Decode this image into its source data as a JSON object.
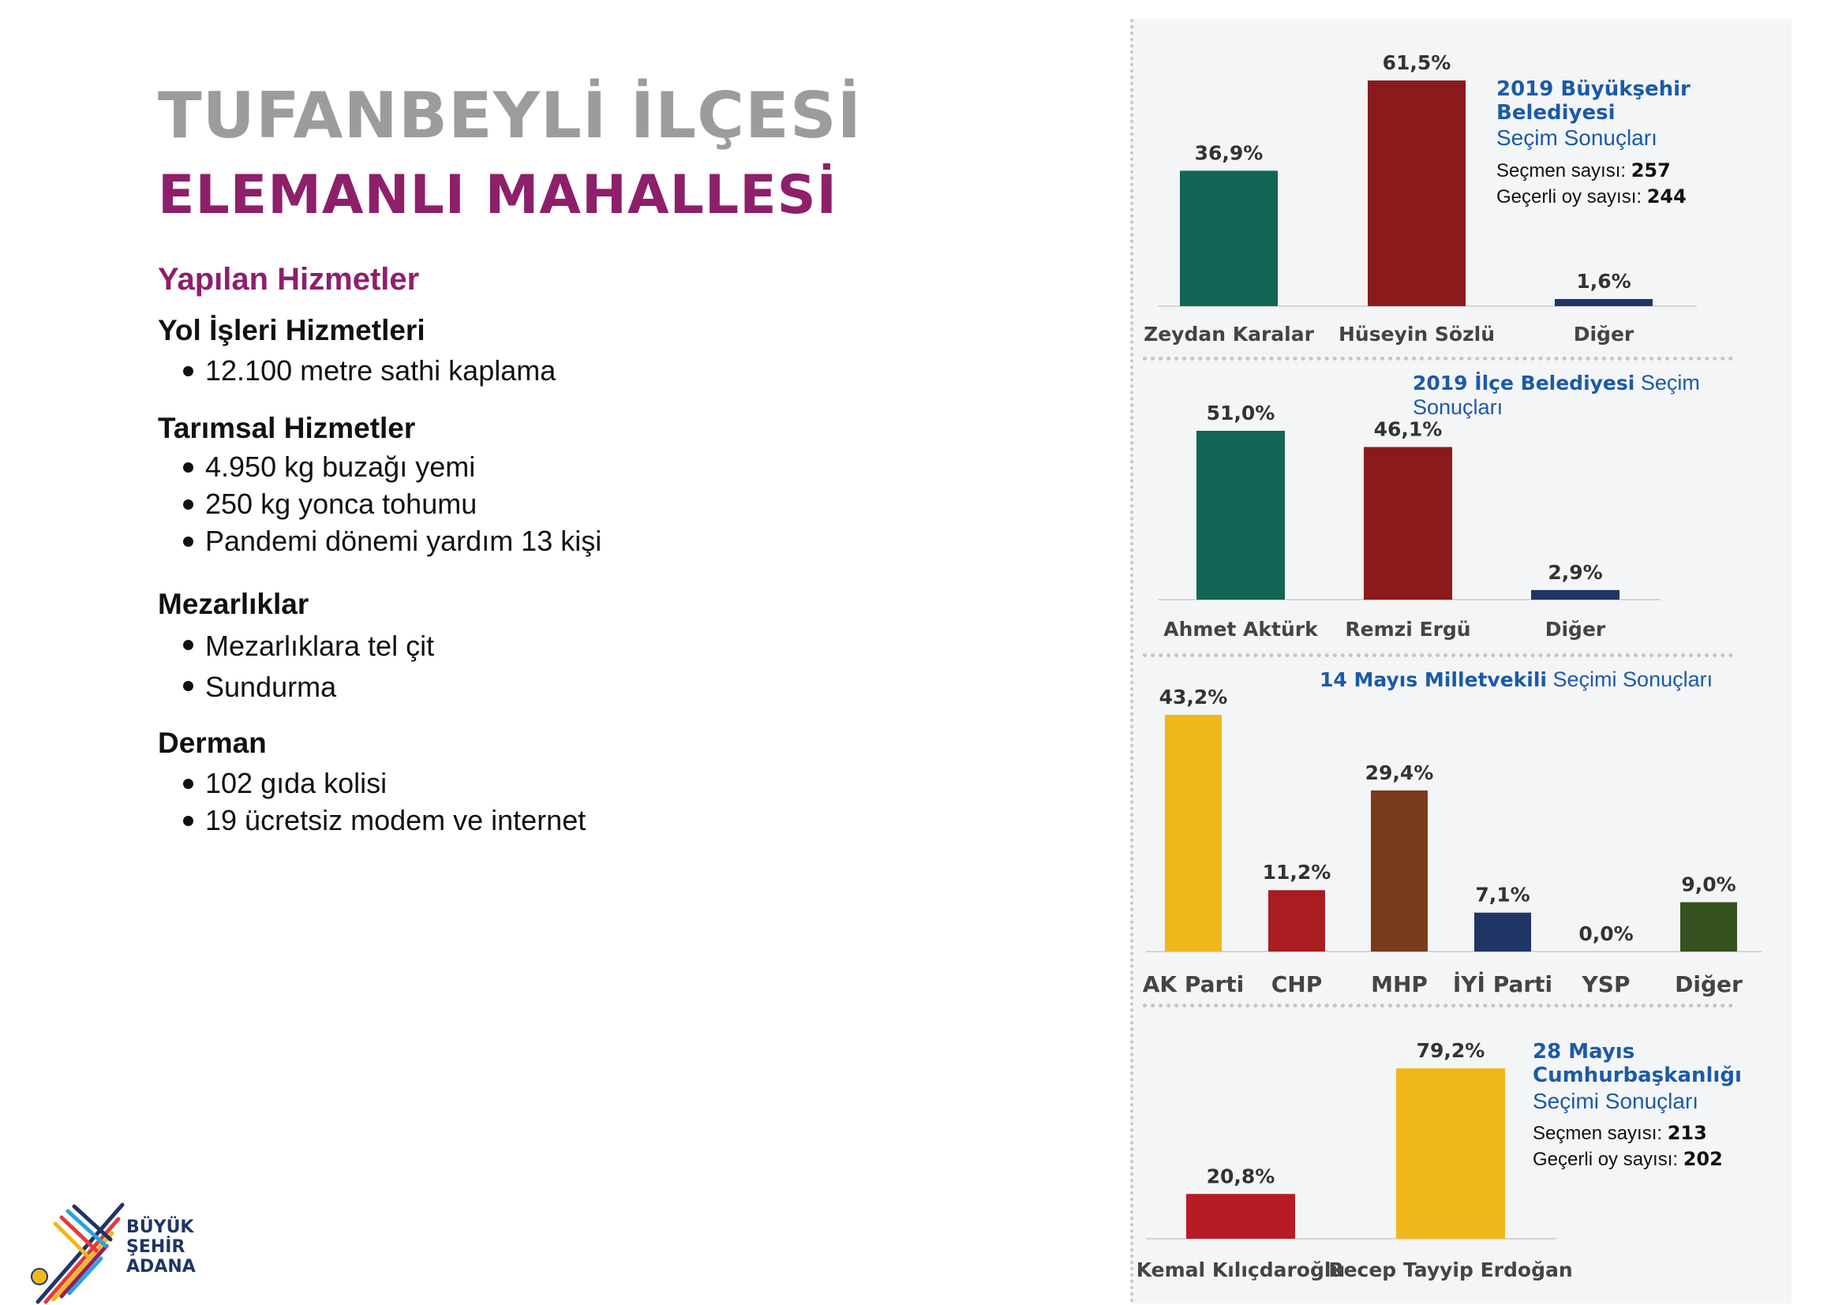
{
  "header": {
    "title_line1": "TUFANBEYLİ İLÇESİ",
    "title_line2": "ELEMANLI MAHALLESİ"
  },
  "services": {
    "heading": "Yapılan Hizmetler",
    "groups": [
      {
        "title": "Yol İşleri Hizmetleri",
        "items": [
          "12.100 metre sathi kaplama"
        ]
      },
      {
        "title": "Tarımsal Hizmetler",
        "items": [
          "4.950 kg buzağı yemi",
          "250 kg yonca tohumu",
          "Pandemi dönemi yardım 13 kişi"
        ]
      },
      {
        "title": "Mezarlıklar",
        "items": [
          "Mezarlıklara tel çit",
          "Sundurma"
        ]
      },
      {
        "title": "Derman",
        "items": [
          "102 gıda kolisi",
          "19 ücretsiz modem ve internet"
        ]
      }
    ]
  },
  "logo": {
    "line1": "BÜYÜK",
    "line2": "ŞEHİR",
    "line3": "ADANA"
  },
  "info_boxes": {
    "metro": {
      "title_bold": "2019 Büyükşehir Belediyesi",
      "title_rest": "Seçim Sonuçları",
      "voters_label": "Seçmen sayısı:",
      "voters_value": "257",
      "valid_label": "Geçerli oy sayısı:",
      "valid_value": "244"
    },
    "district": {
      "title_bold": "2019 İlçe Belediyesi",
      "title_rest": "Seçim Sonuçları"
    },
    "parliament": {
      "title_bold": "14 Mayıs Milletvekili",
      "title_rest": "Seçimi Sonuçları"
    },
    "president": {
      "title_bold_1": "28 Mayıs",
      "title_bold_2": "Cumhurbaşkanlığı",
      "title_rest": "Seçimi Sonuçları",
      "voters_label": "Seçmen sayısı:",
      "voters_value": "213",
      "valid_label": "Geçerli oy sayısı:",
      "valid_value": "202"
    }
  },
  "chart_data": [
    {
      "type": "bar",
      "categories": [
        "Zeydan Karalar",
        "Hüseyin Sözlü",
        "Diğer"
      ],
      "values": [
        36.9,
        61.5,
        1.6
      ],
      "value_labels": [
        "36,9%",
        "61,5%",
        "1,6%"
      ],
      "colors": [
        "#126656",
        "#8b1a1d",
        "#1f3566"
      ],
      "title": "2019 Büyükşehir Belediyesi Seçim Sonuçları",
      "ylim": [
        0,
        61.5
      ]
    },
    {
      "type": "bar",
      "categories": [
        "Ahmet Aktürk",
        "Remzi Ergü",
        "Diğer"
      ],
      "values": [
        51.0,
        46.1,
        2.9
      ],
      "value_labels": [
        "51,0%",
        "46,1%",
        "2,9%"
      ],
      "colors": [
        "#126656",
        "#8b1a1d",
        "#1f3566"
      ],
      "title": "2019 İlçe Belediyesi Seçim Sonuçları",
      "ylim": [
        0,
        51.0
      ]
    },
    {
      "type": "bar",
      "categories": [
        "AK Parti",
        "CHP",
        "MHP",
        "İYİ Parti",
        "YSP",
        "Diğer"
      ],
      "values": [
        43.2,
        11.2,
        29.4,
        7.1,
        0.0,
        9.0
      ],
      "value_labels": [
        "43,2%",
        "11,2%",
        "29,4%",
        "7,1%",
        "0,0%",
        "9,0%"
      ],
      "colors": [
        "#f1b81d",
        "#a81c22",
        "#7a3b1a",
        "#1f3566",
        "#8a3a9a",
        "#35521f"
      ],
      "title": "14 Mayıs Milletvekili Seçimi Sonuçları",
      "ylim": [
        0,
        43.2
      ]
    },
    {
      "type": "bar",
      "categories": [
        "Kemal Kılıçdaroğlu",
        "Recep Tayyip Erdoğan"
      ],
      "values": [
        20.8,
        79.2
      ],
      "value_labels": [
        "20,8%",
        "79,2%"
      ],
      "colors": [
        "#b71c24",
        "#f1b81d"
      ],
      "title": "28 Mayıs Cumhurbaşkanlığı Seçimi Sonuçları",
      "ylim": [
        0,
        79.2
      ]
    }
  ]
}
